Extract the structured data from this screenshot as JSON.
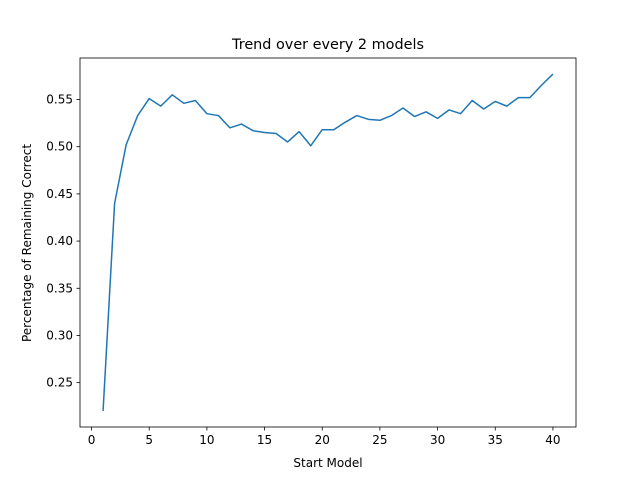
{
  "chart_data": {
    "type": "line",
    "title": "Trend over every 2 models",
    "xlabel": "Start Model",
    "ylabel": "Percentage of Remaining Correct",
    "xlim": [
      -1,
      42
    ],
    "ylim": [
      0.203,
      0.594
    ],
    "xticks": [
      0,
      5,
      10,
      15,
      20,
      25,
      30,
      35,
      40
    ],
    "yticks": [
      0.25,
      0.3,
      0.35,
      0.4,
      0.45,
      0.5,
      0.55
    ],
    "grid": false,
    "legend": "none",
    "series": [
      {
        "color": "#1f77b4",
        "x": [
          1,
          2,
          3,
          4,
          5,
          6,
          7,
          8,
          9,
          10,
          11,
          12,
          13,
          14,
          15,
          16,
          17,
          18,
          19,
          20,
          21,
          22,
          23,
          24,
          25,
          26,
          27,
          28,
          29,
          30,
          31,
          32,
          33,
          34,
          35,
          36,
          37,
          38,
          39,
          40
        ],
        "y": [
          0.22,
          0.44,
          0.502,
          0.533,
          0.551,
          0.543,
          0.555,
          0.546,
          0.549,
          0.535,
          0.533,
          0.52,
          0.524,
          0.517,
          0.515,
          0.514,
          0.505,
          0.516,
          0.501,
          0.518,
          0.518,
          0.526,
          0.533,
          0.529,
          0.528,
          0.533,
          0.541,
          0.532,
          0.537,
          0.53,
          0.539,
          0.535,
          0.549,
          0.54,
          0.548,
          0.543,
          0.552,
          0.552,
          0.565,
          0.577
        ]
      }
    ]
  }
}
